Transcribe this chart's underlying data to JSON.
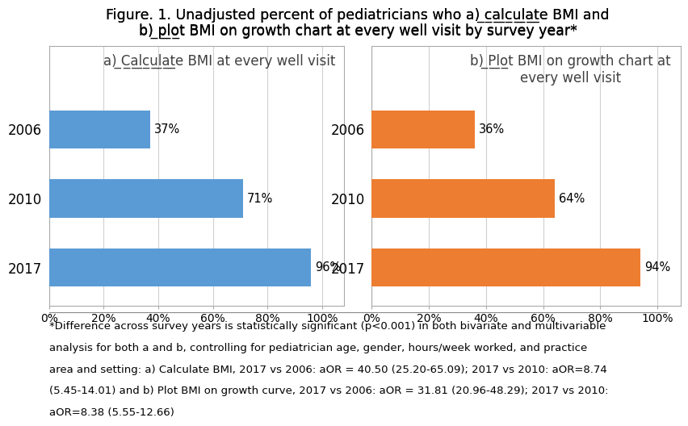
{
  "title_line1": "Figure. 1. Unadjusted percent of pediatricians who a) calculate BMI and",
  "title_line2": "b) plot BMI on growth chart at every well visit by survey year*",
  "panel_a": {
    "title_plain": "a) Calculate BMI at every well visit",
    "title_underline_word": "Calculate",
    "years": [
      "2006",
      "2010",
      "2017"
    ],
    "values": [
      37,
      71,
      96
    ],
    "labels": [
      "37%",
      "71%",
      "96%"
    ],
    "bar_color": "#5B9BD5"
  },
  "panel_b": {
    "title_plain": "b) Plot BMI on growth chart at\nevery well visit",
    "title_underline_word": "Plot",
    "years": [
      "2006",
      "2010",
      "2017"
    ],
    "values": [
      36,
      64,
      94
    ],
    "labels": [
      "36%",
      "64%",
      "94%"
    ],
    "bar_color": "#ED7D31"
  },
  "xticks": [
    0,
    20,
    40,
    60,
    80,
    100
  ],
  "xticklabels": [
    "0%",
    "20%",
    "40%",
    "60%",
    "80%",
    "100%"
  ],
  "xlim": [
    0,
    108
  ],
  "footnote_lines": [
    "*Difference across survey years is statistically significant (p<0.001) in both bivariate and multivariable",
    "analysis for both a and b, controlling for pediatrician age, gender, hours/week worked, and practice",
    "area and setting: a) Calculate BMI, 2017 vs 2006: aOR = 40.50 (25.20-65.09); 2017 vs 2010: aOR=8.74",
    "(5.45-14.01) and b) Plot BMI on growth curve, 2017 vs 2006: aOR = 31.81 (20.96-48.29); 2017 vs 2010:",
    "aOR=8.38 (5.55-12.66)"
  ],
  "background_color": "#FFFFFF",
  "grid_color": "#D0D0D0",
  "bar_height": 0.55,
  "title_fontsize": 12.5,
  "panel_title_fontsize": 12,
  "tick_fontsize": 10,
  "label_fontsize": 10.5,
  "footnote_fontsize": 9.5,
  "year_label_fontsize": 12
}
